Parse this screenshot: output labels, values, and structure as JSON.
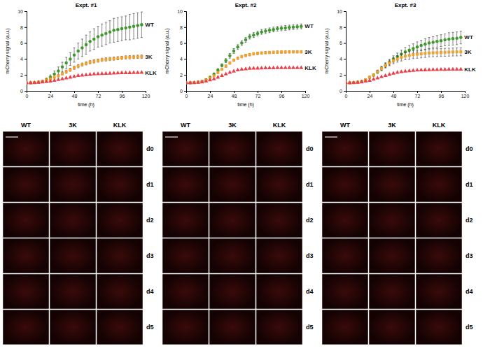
{
  "chart_data": [
    {
      "type": "line",
      "title": "Expt. #1",
      "x_label": "time (h)",
      "y_label": "mCherry signal (a.u.)",
      "x": [
        0,
        4,
        8,
        12,
        16,
        20,
        24,
        28,
        32,
        36,
        40,
        44,
        48,
        52,
        56,
        60,
        64,
        68,
        72,
        76,
        80,
        84,
        88,
        92,
        96,
        100,
        104,
        108,
        112,
        116
      ],
      "xlim": [
        0,
        120
      ],
      "xticks": [
        0,
        24,
        48,
        72,
        96,
        120
      ],
      "ylim": [
        0,
        10
      ],
      "yticks": [
        0,
        2,
        4,
        6,
        8,
        10
      ],
      "grid": false,
      "series": [
        {
          "name": "WT",
          "color": "#3c9a2b",
          "marker": "circle",
          "line_style": "none",
          "values": [
            1.0,
            1.0,
            1.05,
            1.1,
            1.2,
            1.4,
            1.7,
            2.1,
            2.5,
            3.0,
            3.5,
            4.0,
            4.5,
            5.0,
            5.4,
            5.8,
            6.2,
            6.5,
            6.8,
            7.0,
            7.2,
            7.4,
            7.6,
            7.7,
            7.8,
            7.9,
            8.0,
            8.1,
            8.2,
            8.3
          ],
          "errors": [
            0,
            0,
            0.05,
            0.1,
            0.15,
            0.2,
            0.3,
            0.4,
            0.5,
            0.6,
            0.7,
            0.8,
            0.9,
            1.0,
            1.1,
            1.2,
            1.2,
            1.3,
            1.3,
            1.4,
            1.4,
            1.4,
            1.5,
            1.5,
            1.5,
            1.5,
            1.6,
            1.6,
            1.6,
            1.6
          ]
        },
        {
          "name": "3K",
          "color": "#f5a02a",
          "marker": "square",
          "line_style": "none",
          "values": [
            1.0,
            1.0,
            1.05,
            1.1,
            1.2,
            1.35,
            1.5,
            1.7,
            1.9,
            2.15,
            2.4,
            2.65,
            2.9,
            3.1,
            3.3,
            3.45,
            3.6,
            3.7,
            3.8,
            3.9,
            3.95,
            4.0,
            4.05,
            4.1,
            4.15,
            4.2,
            4.22,
            4.25,
            4.28,
            4.3
          ],
          "errors": [
            0,
            0,
            0,
            0.05,
            0.05,
            0.1,
            0.1,
            0.1,
            0.15,
            0.15,
            0.2,
            0.2,
            0.2,
            0.2,
            0.2,
            0.2,
            0.2,
            0.2,
            0.2,
            0.2,
            0.2,
            0.2,
            0.2,
            0.2,
            0.2,
            0.2,
            0.2,
            0.2,
            0.2,
            0.2
          ]
        },
        {
          "name": "KLK",
          "color": "#e8414b",
          "marker": "triangle",
          "line_style": "none",
          "values": [
            1.0,
            1.0,
            1.0,
            1.05,
            1.1,
            1.15,
            1.2,
            1.3,
            1.4,
            1.5,
            1.6,
            1.7,
            1.8,
            1.9,
            1.95,
            2.0,
            2.05,
            2.1,
            2.12,
            2.15,
            2.18,
            2.2,
            2.22,
            2.24,
            2.25,
            2.26,
            2.27,
            2.28,
            2.29,
            2.3
          ]
        }
      ]
    },
    {
      "type": "line",
      "title": "Expt. #2",
      "x_label": "time (h)",
      "y_label": "mCherry signal (a.u.)",
      "x": [
        0,
        4,
        8,
        12,
        16,
        20,
        24,
        28,
        32,
        36,
        40,
        44,
        48,
        52,
        56,
        60,
        64,
        68,
        72,
        76,
        80,
        84,
        88,
        92,
        96,
        100,
        104,
        108,
        112,
        116
      ],
      "xlim": [
        0,
        120
      ],
      "xticks": [
        0,
        24,
        48,
        72,
        96,
        120
      ],
      "ylim": [
        0,
        10
      ],
      "yticks": [
        0,
        2,
        4,
        6,
        8,
        10
      ],
      "grid": false,
      "series": [
        {
          "name": "WT",
          "color": "#3c9a2b",
          "marker": "circle",
          "line_style": "none",
          "values": [
            1.0,
            1.0,
            1.05,
            1.1,
            1.2,
            1.4,
            1.7,
            2.1,
            2.6,
            3.2,
            3.8,
            4.4,
            5.0,
            5.5,
            6.0,
            6.4,
            6.8,
            7.0,
            7.2,
            7.4,
            7.5,
            7.6,
            7.7,
            7.8,
            7.85,
            7.9,
            7.95,
            8.0,
            8.05,
            8.1
          ],
          "errors": [
            0,
            0,
            0,
            0.05,
            0.05,
            0.1,
            0.1,
            0.15,
            0.2,
            0.2,
            0.25,
            0.3,
            0.3,
            0.3,
            0.3,
            0.3,
            0.3,
            0.3,
            0.3,
            0.3,
            0.3,
            0.3,
            0.3,
            0.3,
            0.3,
            0.3,
            0.3,
            0.3,
            0.3,
            0.3
          ]
        },
        {
          "name": "3K",
          "color": "#f5a02a",
          "marker": "square",
          "line_style": "none",
          "values": [
            1.0,
            1.0,
            1.05,
            1.1,
            1.2,
            1.35,
            1.6,
            1.9,
            2.3,
            2.7,
            3.1,
            3.5,
            3.85,
            4.1,
            4.3,
            4.45,
            4.55,
            4.65,
            4.7,
            4.75,
            4.8,
            4.82,
            4.84,
            4.86,
            4.87,
            4.88,
            4.89,
            4.9,
            4.9,
            4.9
          ],
          "errors": [
            0,
            0,
            0,
            0.05,
            0.05,
            0.05,
            0.1,
            0.1,
            0.1,
            0.1,
            0.15,
            0.15,
            0.15,
            0.15,
            0.15,
            0.15,
            0.15,
            0.15,
            0.15,
            0.15,
            0.15,
            0.15,
            0.15,
            0.15,
            0.15,
            0.15,
            0.15,
            0.15,
            0.15,
            0.15
          ]
        },
        {
          "name": "KLK",
          "color": "#e8414b",
          "marker": "triangle",
          "line_style": "none",
          "values": [
            1.0,
            1.0,
            1.0,
            1.05,
            1.1,
            1.2,
            1.35,
            1.5,
            1.7,
            1.9,
            2.1,
            2.3,
            2.45,
            2.6,
            2.7,
            2.75,
            2.8,
            2.82,
            2.84,
            2.86,
            2.87,
            2.88,
            2.88,
            2.89,
            2.89,
            2.9,
            2.9,
            2.9,
            2.9,
            2.9
          ]
        }
      ]
    },
    {
      "type": "line",
      "title": "Expt. #3",
      "x_label": "time (h)",
      "y_label": "mCherry signal (a.u.)",
      "x": [
        0,
        4,
        8,
        12,
        16,
        20,
        24,
        28,
        32,
        36,
        40,
        44,
        48,
        52,
        56,
        60,
        64,
        68,
        72,
        76,
        80,
        84,
        88,
        92,
        96,
        100,
        104,
        108,
        112,
        116
      ],
      "xlim": [
        0,
        120
      ],
      "xticks": [
        0,
        24,
        48,
        72,
        96,
        120
      ],
      "ylim": [
        0,
        10
      ],
      "yticks": [
        0,
        2,
        4,
        6,
        8,
        10
      ],
      "grid": false,
      "series": [
        {
          "name": "WT",
          "color": "#3c9a2b",
          "marker": "circle",
          "line_style": "none",
          "values": [
            1.0,
            1.0,
            1.05,
            1.1,
            1.2,
            1.4,
            1.7,
            2.0,
            2.4,
            2.8,
            3.2,
            3.6,
            4.0,
            4.3,
            4.6,
            4.9,
            5.1,
            5.3,
            5.5,
            5.7,
            5.85,
            6.0,
            6.1,
            6.2,
            6.3,
            6.4,
            6.5,
            6.55,
            6.6,
            6.7
          ],
          "errors": [
            0,
            0,
            0,
            0.05,
            0.05,
            0.1,
            0.1,
            0.15,
            0.2,
            0.25,
            0.3,
            0.35,
            0.4,
            0.45,
            0.5,
            0.55,
            0.6,
            0.6,
            0.65,
            0.65,
            0.7,
            0.7,
            0.7,
            0.75,
            0.75,
            0.75,
            0.8,
            0.8,
            0.8,
            0.8
          ]
        },
        {
          "name": "3K",
          "color": "#f5a02a",
          "marker": "square",
          "line_style": "none",
          "values": [
            1.0,
            1.0,
            1.05,
            1.1,
            1.2,
            1.4,
            1.7,
            2.0,
            2.4,
            2.8,
            3.2,
            3.5,
            3.8,
            4.0,
            4.2,
            4.35,
            4.45,
            4.55,
            4.6,
            4.65,
            4.7,
            4.75,
            4.78,
            4.8,
            4.82,
            4.84,
            4.86,
            4.88,
            4.89,
            4.9
          ],
          "errors": [
            0,
            0,
            0,
            0.05,
            0.05,
            0.1,
            0.1,
            0.15,
            0.2,
            0.25,
            0.3,
            0.35,
            0.4,
            0.4,
            0.45,
            0.45,
            0.5,
            0.5,
            0.5,
            0.5,
            0.5,
            0.5,
            0.5,
            0.5,
            0.5,
            0.5,
            0.5,
            0.5,
            0.5,
            0.5
          ]
        },
        {
          "name": "KLK",
          "color": "#e8414b",
          "marker": "triangle",
          "line_style": "none",
          "values": [
            1.0,
            1.0,
            1.0,
            1.05,
            1.1,
            1.2,
            1.3,
            1.45,
            1.6,
            1.75,
            1.9,
            2.05,
            2.2,
            2.3,
            2.4,
            2.45,
            2.5,
            2.55,
            2.58,
            2.6,
            2.62,
            2.64,
            2.65,
            2.66,
            2.67,
            2.68,
            2.69,
            2.7,
            2.7,
            2.7
          ]
        }
      ]
    }
  ],
  "image_panels": [
    {
      "columns": [
        "WT",
        "3K",
        "KLK"
      ],
      "rows": [
        "d0",
        "d1",
        "d2",
        "d3",
        "d4",
        "d5"
      ]
    },
    {
      "columns": [
        "WT",
        "3K",
        "KLK"
      ],
      "rows": [
        "d0",
        "d1",
        "d2",
        "d3",
        "d4",
        "d5"
      ]
    },
    {
      "columns": [
        "WT",
        "3K",
        "KLK"
      ],
      "rows": [
        "d0",
        "d1",
        "d2",
        "d3",
        "d4",
        "d5"
      ]
    }
  ]
}
